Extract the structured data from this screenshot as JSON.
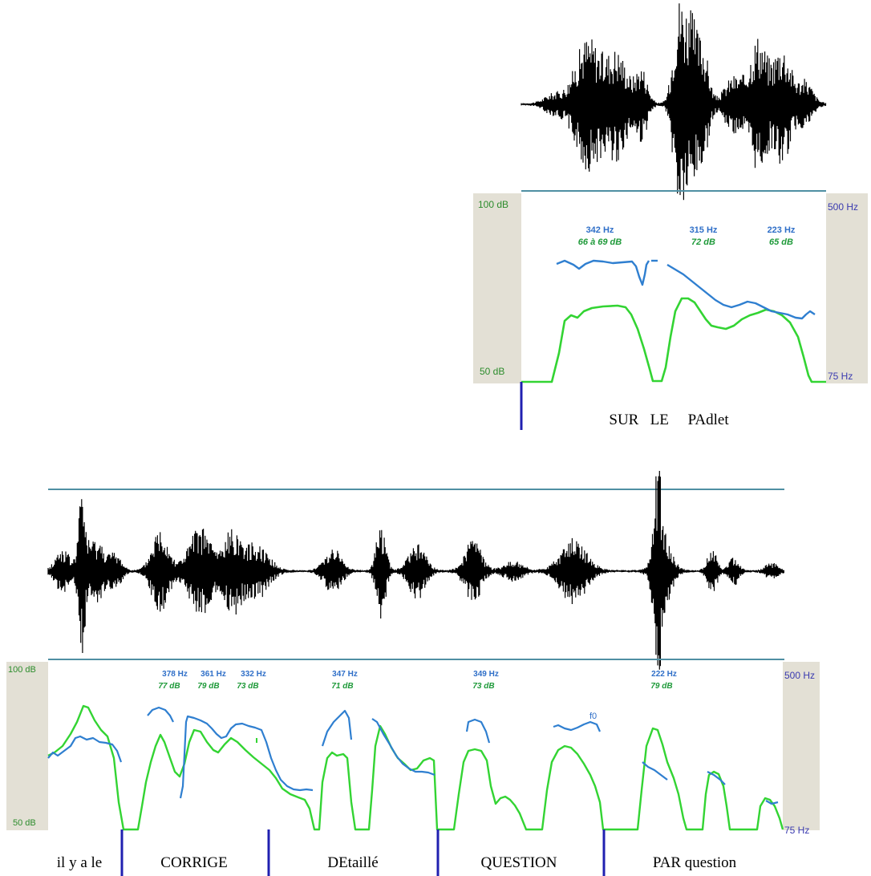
{
  "colors": {
    "waveform": "#000000",
    "pitch": "#2f7fd0",
    "intensity": "#33d433",
    "panel_frame": "#4f8fa3",
    "side_band": "#e3e0d5",
    "db_label": "#2c8c2c",
    "hz_label": "#3a3ab0",
    "pitch_note": "#2f6fc8",
    "db_note": "#1f9a3a",
    "boundary": "#2020b0"
  },
  "top_panel": {
    "db_max": "100 dB",
    "db_min": "50 dB",
    "hz_max": "500 Hz",
    "hz_min": "75 Hz",
    "annotations": [
      {
        "hz": "342 Hz",
        "db": "66 à 69 dB"
      },
      {
        "hz": "315 Hz",
        "db": "72 dB"
      },
      {
        "hz": "223 Hz",
        "db": "65 dB"
      }
    ],
    "text": "SUR   LE     PAdlet"
  },
  "bottom_panel": {
    "db_max": "100 dB",
    "db_min": "50 dB",
    "hz_max": "500 Hz",
    "hz_min": "75 Hz",
    "annotations": [
      {
        "hz": "378 Hz",
        "db": "77 dB"
      },
      {
        "hz": "361 Hz",
        "db": "79 dB"
      },
      {
        "hz": "332 Hz",
        "db": "73 dB"
      },
      {
        "hz": "347 Hz",
        "db": "71 dB"
      },
      {
        "hz": "349 Hz",
        "db": "73 dB"
      },
      {
        "hz": "222 Hz",
        "db": "79 dB"
      }
    ],
    "f0_label": "f0",
    "segments": [
      "il y a le",
      "CORRIGE",
      "DEtaillé",
      "QUESTION",
      "PAR question"
    ]
  }
}
